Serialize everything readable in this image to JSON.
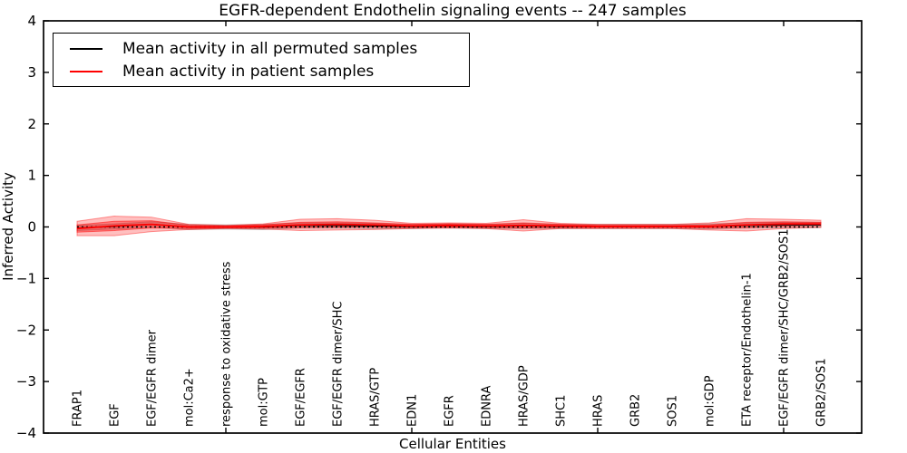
{
  "chart_data": {
    "type": "line",
    "title": "EGFR-dependent Endothelin signaling events -- 247 samples",
    "xlabel": "Cellular Entities",
    "ylabel": "Inferred Activity",
    "ylim": [
      -4,
      4
    ],
    "yticks": [
      {
        "value": 4,
        "label": "4"
      },
      {
        "value": 3,
        "label": "3"
      },
      {
        "value": 2,
        "label": "2"
      },
      {
        "value": 1,
        "label": "1"
      },
      {
        "value": 0,
        "label": "0"
      },
      {
        "value": -1,
        "label": "−1"
      },
      {
        "value": -2,
        "label": "−2"
      },
      {
        "value": -3,
        "label": "−3"
      },
      {
        "value": -4,
        "label": "−4"
      }
    ],
    "grid": false,
    "legend_position": "upper-left",
    "categories": [
      "FRAP1",
      "EGF",
      "EGF/EGFR dimer",
      "mol:Ca2+",
      "response to oxidative stress",
      "mol:GTP",
      "EGF/EGFR",
      "EGF/EGFR dimer/SHC",
      "HRAS/GTP",
      "EDN1",
      "EGFR",
      "EDNRA",
      "HRAS/GDP",
      "SHC1",
      "HRAS",
      "GRB2",
      "SOS1",
      "mol:GDP",
      "ETA receptor/Endothelin-1",
      "EGF/EGFR dimer/SHC/GRB2/SOS1",
      "GRB2/SOS1"
    ],
    "series": [
      {
        "name": "Mean activity in all permuted samples",
        "color": "#000000",
        "values": [
          -0.02,
          0.01,
          0.05,
          0.0,
          0.0,
          0.0,
          0.03,
          0.03,
          0.02,
          0.01,
          0.02,
          0.01,
          0.02,
          0.01,
          0.01,
          0.01,
          0.01,
          0.01,
          0.03,
          0.04,
          0.04
        ]
      },
      {
        "name": "Mean activity in patient samples",
        "color": "#ff0000",
        "values": [
          -0.03,
          0.02,
          0.05,
          0.0,
          0.0,
          0.01,
          0.04,
          0.05,
          0.04,
          0.02,
          0.03,
          0.02,
          0.03,
          0.02,
          0.01,
          0.01,
          0.01,
          0.01,
          0.04,
          0.06,
          0.06
        ]
      }
    ],
    "bands": [
      {
        "name": "permuted-samples-spread",
        "center_series": 0,
        "color": "#808080",
        "alpha": 0.35,
        "half_widths": [
          0.05,
          0.05,
          0.05,
          0.05,
          0.04,
          0.05,
          0.05,
          0.05,
          0.05,
          0.04,
          0.04,
          0.04,
          0.05,
          0.04,
          0.04,
          0.04,
          0.04,
          0.05,
          0.05,
          0.05,
          0.05
        ]
      },
      {
        "name": "patient-samples-spread-outer",
        "center_series": 1,
        "color": "#ff0000",
        "alpha": 0.25,
        "half_widths": [
          0.14,
          0.19,
          0.14,
          0.05,
          0.03,
          0.05,
          0.11,
          0.11,
          0.09,
          0.05,
          0.05,
          0.05,
          0.11,
          0.05,
          0.04,
          0.04,
          0.04,
          0.07,
          0.12,
          0.09,
          0.07
        ]
      },
      {
        "name": "patient-samples-spread-inner",
        "center_series": 1,
        "color": "#ff0000",
        "alpha": 0.35,
        "half_widths": [
          0.07,
          0.09,
          0.07,
          0.03,
          0.02,
          0.03,
          0.05,
          0.05,
          0.04,
          0.03,
          0.03,
          0.03,
          0.05,
          0.03,
          0.02,
          0.02,
          0.02,
          0.03,
          0.05,
          0.04,
          0.03
        ]
      }
    ],
    "zero_line": {
      "y": 0,
      "style": "dotted",
      "color": "#000000"
    }
  }
}
